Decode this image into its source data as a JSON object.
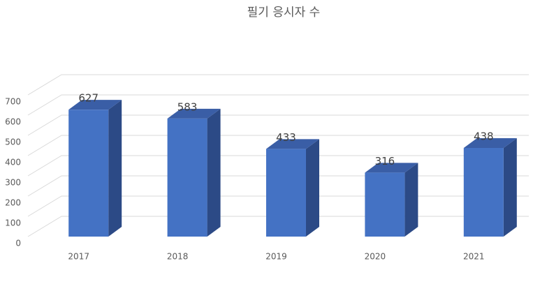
{
  "chart_data": {
    "type": "bar3d",
    "title": "필기 응시자 수",
    "categories": [
      "2017",
      "2018",
      "2019",
      "2020",
      "2021"
    ],
    "values": [
      627,
      583,
      433,
      316,
      438
    ],
    "color": "#4472c4",
    "ylim": [
      0,
      700
    ],
    "yticks": [
      0,
      100,
      200,
      300,
      400,
      500,
      600,
      700
    ],
    "grid": true
  }
}
